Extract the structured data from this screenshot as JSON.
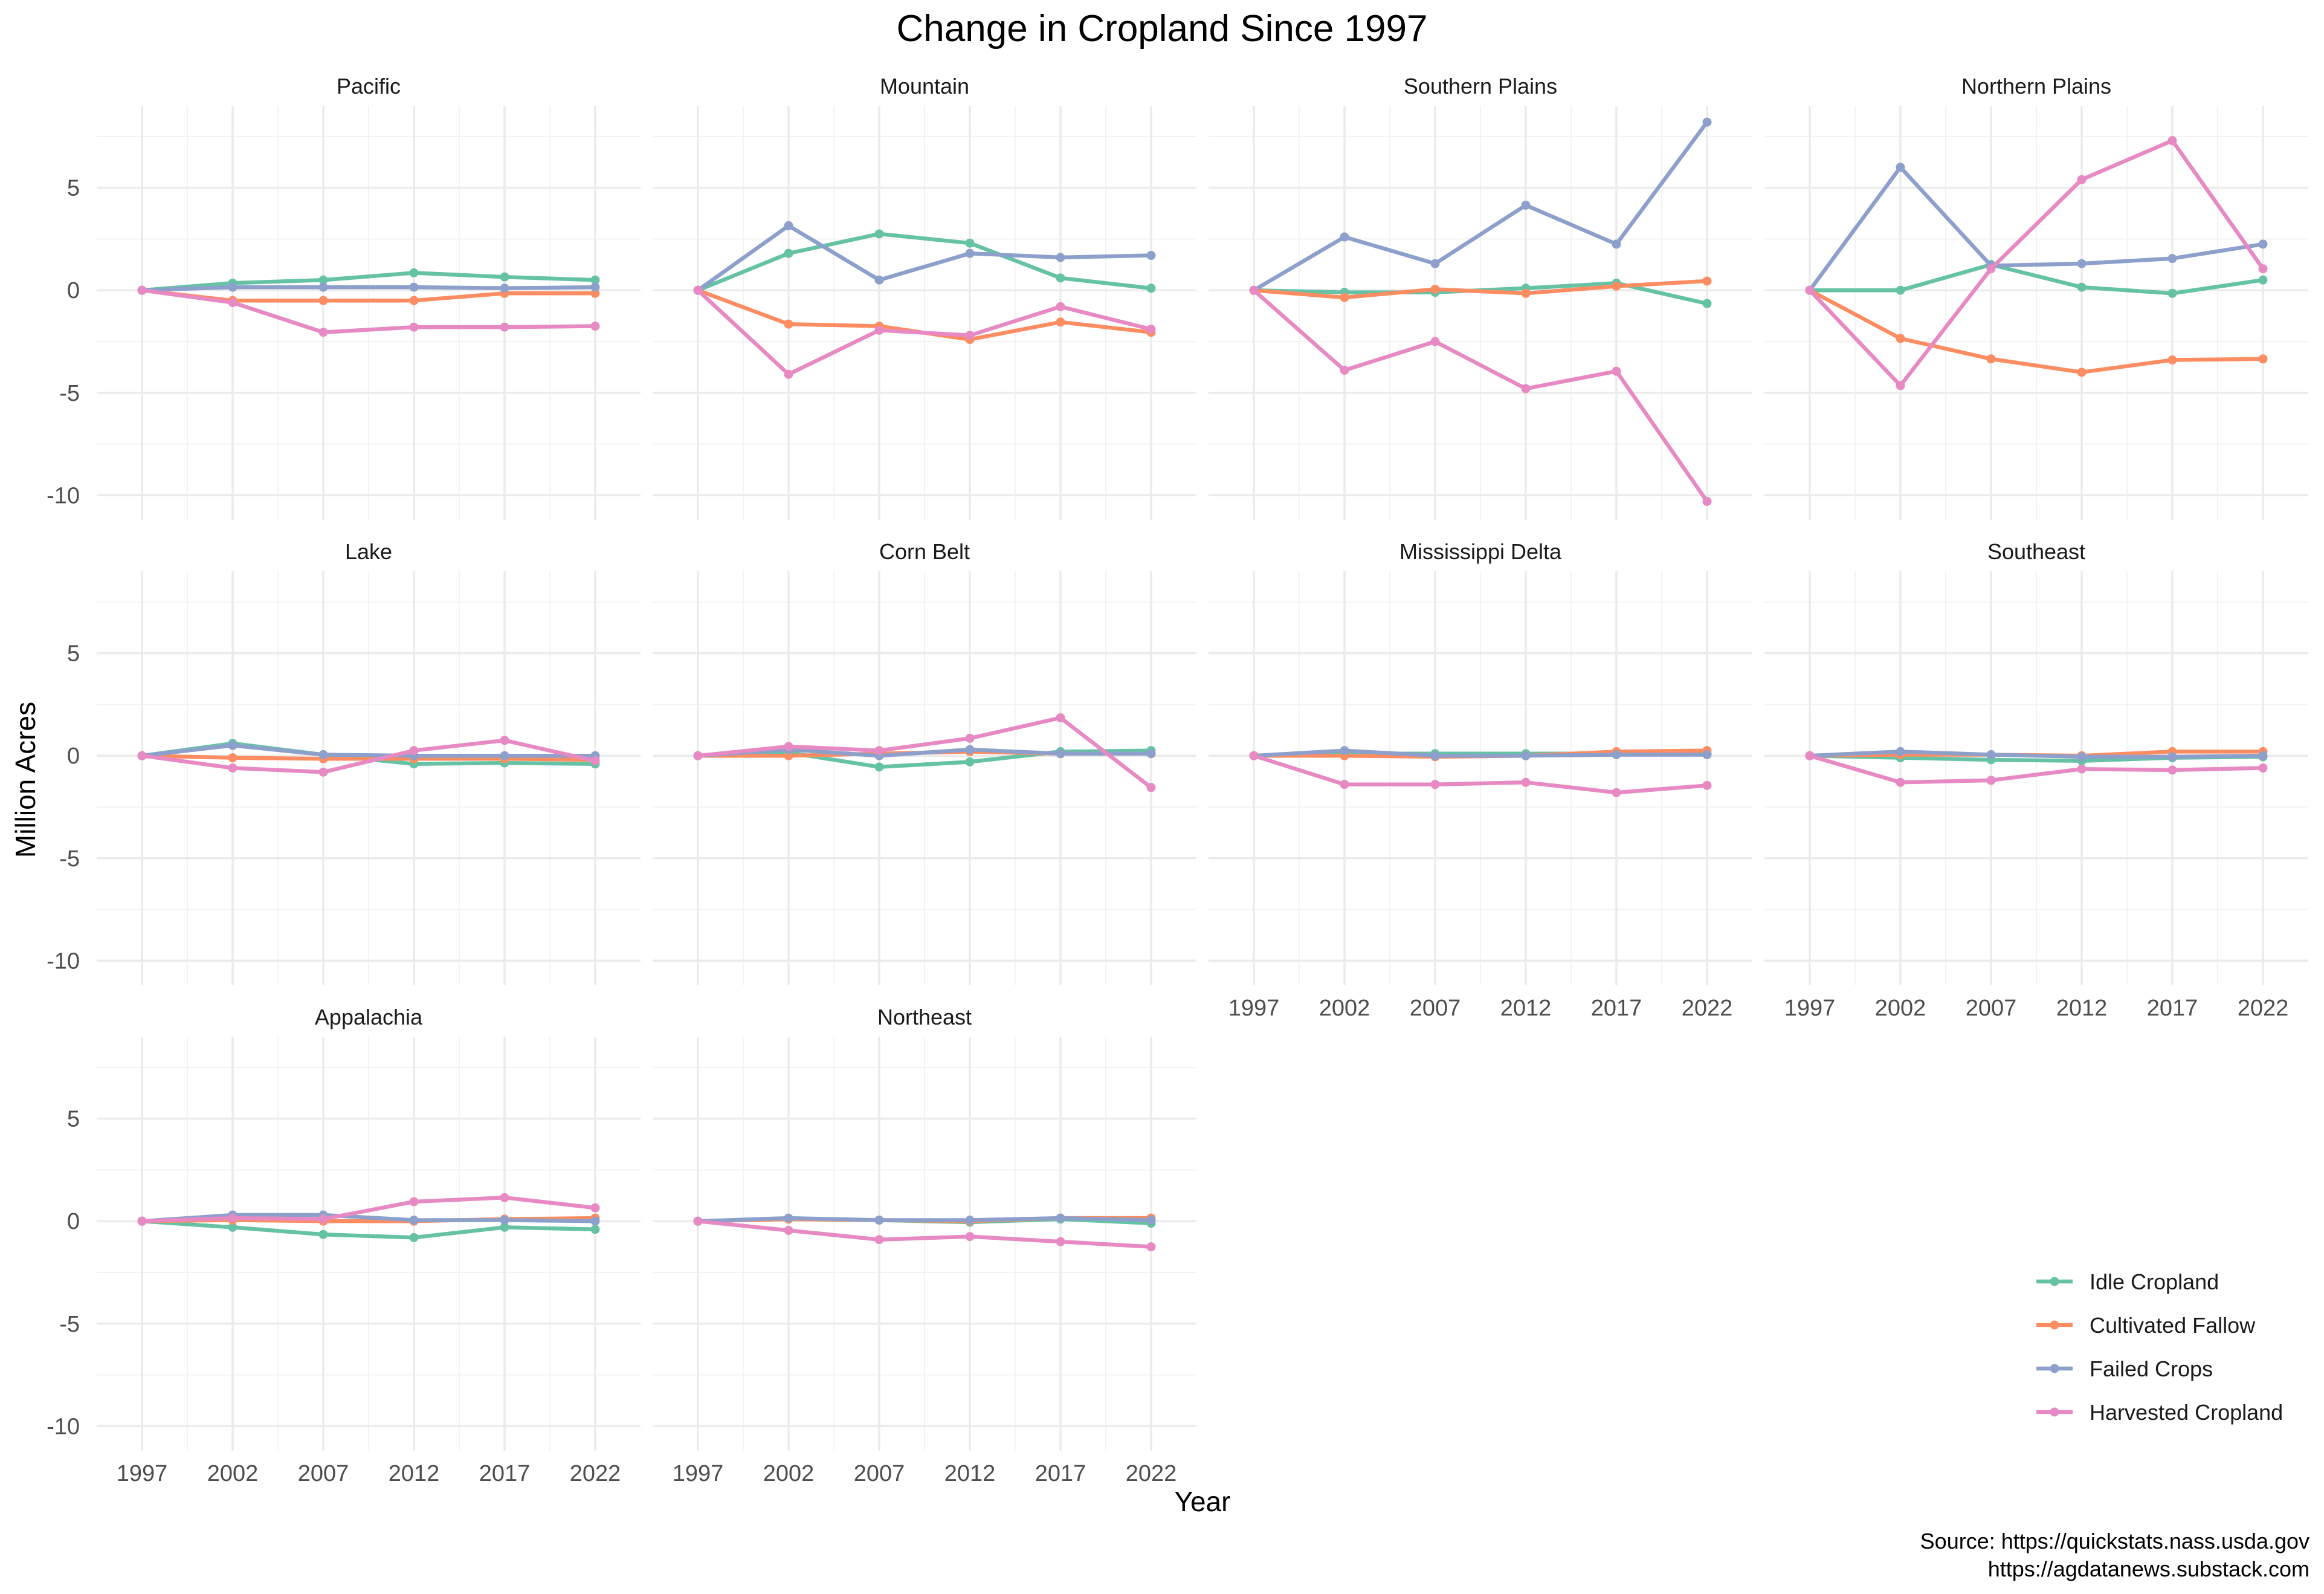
{
  "chart_data": {
    "type": "line",
    "title": "Change in Cropland Since 1997",
    "xlabel": "Year",
    "ylabel": "Million Acres",
    "x": [
      1997,
      2002,
      2007,
      2012,
      2017,
      2022
    ],
    "x_ticks": [
      "1997",
      "2002",
      "2007",
      "2012",
      "2017",
      "2022"
    ],
    "y_ticks": [
      "5",
      "0",
      "-5",
      "-10"
    ],
    "ylim": [
      -11.2,
      9.0
    ],
    "grid": true,
    "legend_position": "bottom-right",
    "source": [
      "Source: https://quickstats.nass.usda.gov",
      "https://agdatanews.substack.com"
    ],
    "series_colors": {
      "Idle Cropland": "#66c2a5",
      "Cultivated Fallow": "#fc8d62",
      "Failed Crops": "#8da0cb",
      "Harvested Cropland": "#e78ac3"
    },
    "legend": [
      "Idle Cropland",
      "Cultivated Fallow",
      "Failed Crops",
      "Harvested Cropland"
    ],
    "panels": [
      {
        "name": "Pacific",
        "series": [
          {
            "name": "Idle Cropland",
            "values": [
              0,
              0.35,
              0.5,
              0.85,
              0.65,
              0.5
            ]
          },
          {
            "name": "Cultivated Fallow",
            "values": [
              0,
              -0.5,
              -0.5,
              -0.5,
              -0.15,
              -0.15
            ]
          },
          {
            "name": "Failed Crops",
            "values": [
              0,
              0.15,
              0.15,
              0.15,
              0.1,
              0.15
            ]
          },
          {
            "name": "Harvested Cropland",
            "values": [
              0,
              -0.6,
              -2.05,
              -1.8,
              -1.8,
              -1.75
            ]
          }
        ]
      },
      {
        "name": "Mountain",
        "series": [
          {
            "name": "Idle Cropland",
            "values": [
              0,
              1.8,
              2.75,
              2.3,
              0.6,
              0.1
            ]
          },
          {
            "name": "Cultivated Fallow",
            "values": [
              0,
              -1.65,
              -1.75,
              -2.4,
              -1.55,
              -2.05
            ]
          },
          {
            "name": "Failed Crops",
            "values": [
              0,
              3.15,
              0.5,
              1.8,
              1.6,
              1.7
            ]
          },
          {
            "name": "Harvested Cropland",
            "values": [
              0,
              -4.1,
              -1.95,
              -2.2,
              -0.8,
              -1.9
            ]
          }
        ]
      },
      {
        "name": "Southern Plains",
        "series": [
          {
            "name": "Idle Cropland",
            "values": [
              0,
              -0.1,
              -0.1,
              0.1,
              0.35,
              -0.65
            ]
          },
          {
            "name": "Cultivated Fallow",
            "values": [
              0,
              -0.35,
              0.05,
              -0.15,
              0.2,
              0.45
            ]
          },
          {
            "name": "Failed Crops",
            "values": [
              0,
              2.6,
              1.3,
              4.15,
              2.25,
              8.2
            ]
          },
          {
            "name": "Harvested Cropland",
            "values": [
              0,
              -3.9,
              -2.5,
              -4.8,
              -3.95,
              -10.3
            ]
          }
        ]
      },
      {
        "name": "Northern Plains",
        "series": [
          {
            "name": "Idle Cropland",
            "values": [
              0,
              0,
              1.25,
              0.15,
              -0.15,
              0.5
            ]
          },
          {
            "name": "Cultivated Fallow",
            "values": [
              0,
              -2.35,
              -3.35,
              -4.0,
              -3.4,
              -3.35
            ]
          },
          {
            "name": "Failed Crops",
            "values": [
              0,
              6.0,
              1.2,
              1.3,
              1.55,
              2.25
            ]
          },
          {
            "name": "Harvested Cropland",
            "values": [
              0,
              -4.65,
              1.05,
              5.4,
              7.3,
              1.05
            ]
          }
        ]
      },
      {
        "name": "Lake",
        "series": [
          {
            "name": "Idle Cropland",
            "values": [
              0,
              0.6,
              0.05,
              -0.4,
              -0.35,
              -0.4
            ]
          },
          {
            "name": "Cultivated Fallow",
            "values": [
              0,
              -0.1,
              -0.15,
              -0.15,
              -0.15,
              -0.2
            ]
          },
          {
            "name": "Failed Crops",
            "values": [
              0,
              0.5,
              0.05,
              0,
              0,
              0
            ]
          },
          {
            "name": "Harvested Cropland",
            "values": [
              0,
              -0.6,
              -0.8,
              0.25,
              0.75,
              -0.25
            ]
          }
        ]
      },
      {
        "name": "Corn Belt",
        "series": [
          {
            "name": "Idle Cropland",
            "values": [
              0,
              0.15,
              -0.55,
              -0.3,
              0.2,
              0.25
            ]
          },
          {
            "name": "Cultivated Fallow",
            "values": [
              0,
              0,
              0.1,
              0.2,
              0.1,
              0.1
            ]
          },
          {
            "name": "Failed Crops",
            "values": [
              0,
              0.3,
              0,
              0.3,
              0.1,
              0.1
            ]
          },
          {
            "name": "Harvested Cropland",
            "values": [
              0,
              0.45,
              0.25,
              0.85,
              1.85,
              -1.55
            ]
          }
        ]
      },
      {
        "name": "Mississippi Delta",
        "series": [
          {
            "name": "Idle Cropland",
            "values": [
              0,
              0.1,
              0.1,
              0.1,
              0.1,
              0.1
            ]
          },
          {
            "name": "Cultivated Fallow",
            "values": [
              0,
              0,
              -0.05,
              0,
              0.2,
              0.25
            ]
          },
          {
            "name": "Failed Crops",
            "values": [
              0,
              0.25,
              0,
              0,
              0.05,
              0.05
            ]
          },
          {
            "name": "Harvested Cropland",
            "values": [
              0,
              -1.4,
              -1.4,
              -1.3,
              -1.8,
              -1.45
            ]
          }
        ]
      },
      {
        "name": "Southeast",
        "series": [
          {
            "name": "Idle Cropland",
            "values": [
              0,
              -0.1,
              -0.2,
              -0.25,
              -0.1,
              -0.05
            ]
          },
          {
            "name": "Cultivated Fallow",
            "values": [
              0,
              0.05,
              0.05,
              0,
              0.2,
              0.2
            ]
          },
          {
            "name": "Failed Crops",
            "values": [
              0,
              0.2,
              0.05,
              -0.05,
              -0.05,
              0
            ]
          },
          {
            "name": "Harvested Cropland",
            "values": [
              0,
              -1.3,
              -1.2,
              -0.65,
              -0.7,
              -0.6
            ]
          }
        ]
      },
      {
        "name": "Appalachia",
        "series": [
          {
            "name": "Idle Cropland",
            "values": [
              0,
              -0.3,
              -0.65,
              -0.8,
              -0.3,
              -0.4
            ]
          },
          {
            "name": "Cultivated Fallow",
            "values": [
              0,
              0.05,
              0,
              0,
              0.1,
              0.15
            ]
          },
          {
            "name": "Failed Crops",
            "values": [
              0,
              0.3,
              0.3,
              0.05,
              0.05,
              0
            ]
          },
          {
            "name": "Harvested Cropland",
            "values": [
              0,
              0.15,
              0.1,
              0.95,
              1.15,
              0.65
            ]
          }
        ]
      },
      {
        "name": "Northeast",
        "series": [
          {
            "name": "Idle Cropland",
            "values": [
              0,
              0.1,
              0.05,
              -0.05,
              0.1,
              -0.1
            ]
          },
          {
            "name": "Cultivated Fallow",
            "values": [
              0,
              0.1,
              0.05,
              0,
              0.15,
              0.15
            ]
          },
          {
            "name": "Failed Crops",
            "values": [
              0,
              0.15,
              0.05,
              0.05,
              0.15,
              0.05
            ]
          },
          {
            "name": "Harvested Cropland",
            "values": [
              0,
              -0.45,
              -0.9,
              -0.75,
              -1.0,
              -1.25
            ]
          }
        ]
      }
    ]
  }
}
